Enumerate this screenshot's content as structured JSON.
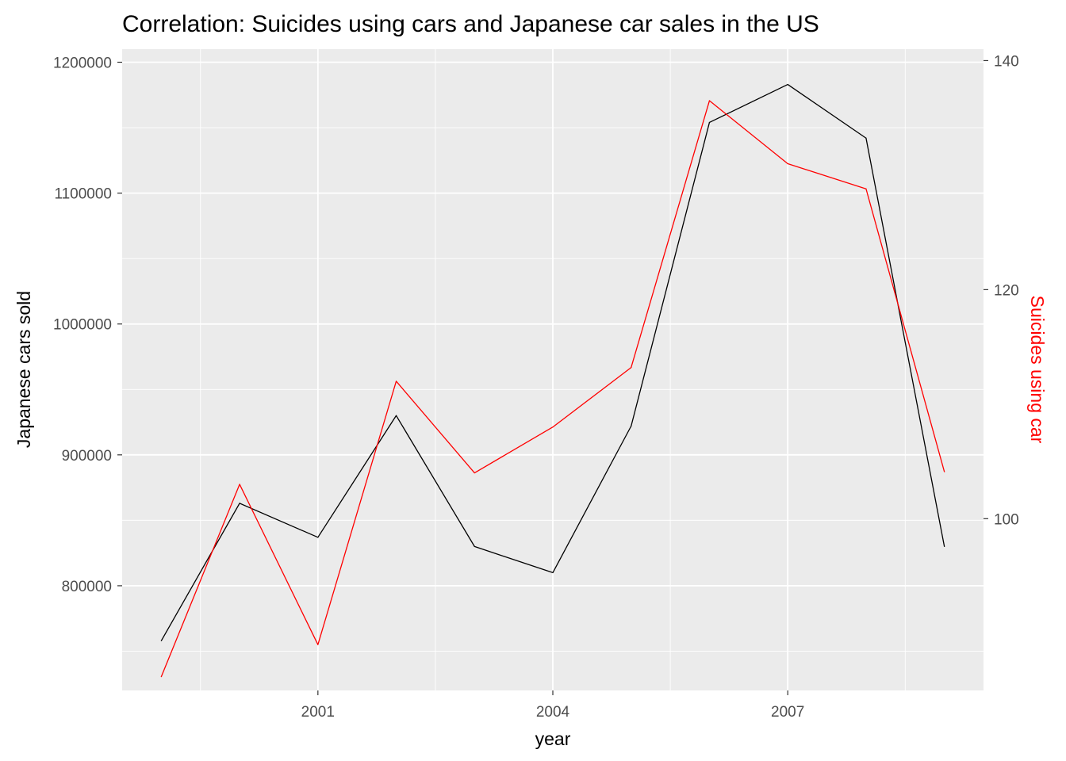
{
  "chart_data": {
    "type": "line",
    "title": "Correlation: Suicides using cars and Japanese car sales in the US",
    "xlabel": "year",
    "ylabel": "Japanese cars sold",
    "y2label": "Suicides using car",
    "x": [
      1999,
      2000,
      2001,
      2002,
      2003,
      2004,
      2005,
      2006,
      2007,
      2008,
      2009
    ],
    "x_ticks": [
      "2001",
      "2004",
      "2007"
    ],
    "y_ticks": [
      "800000",
      "900000",
      "1000000",
      "1100000",
      "1200000"
    ],
    "y2_ticks": [
      "100",
      "120",
      "140"
    ],
    "xlim": [
      1998.5,
      2009.5
    ],
    "ylim": [
      720000,
      1210000
    ],
    "y2lim": [
      85.0,
      141.0
    ],
    "grid": true,
    "series": [
      {
        "name": "",
        "axis": "left",
        "color": "#000000",
        "values": [
          758000,
          863000,
          837000,
          930000,
          830000,
          810000,
          922000,
          1154000,
          1183000,
          1142000,
          830000
        ]
      },
      {
        "name": "",
        "axis": "right",
        "color": "#ff0000",
        "values": [
          86.2,
          103.0,
          89.0,
          112.0,
          104.0,
          108.0,
          113.2,
          136.5,
          131.0,
          128.8,
          104.1
        ]
      }
    ],
    "panel_background": "#ebebeb",
    "grid_color": "#ffffff"
  }
}
